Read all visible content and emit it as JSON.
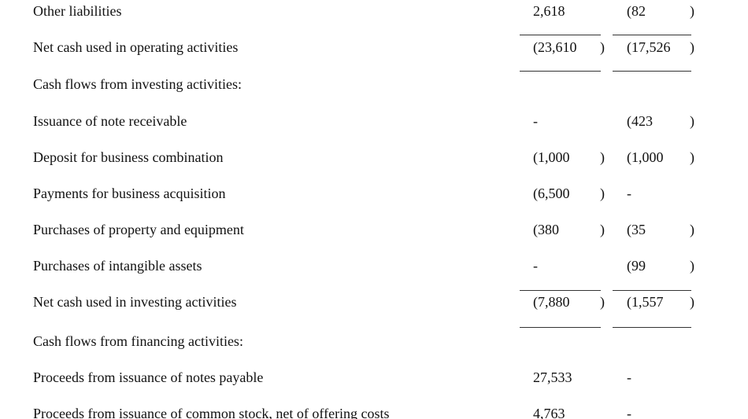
{
  "rows": [
    {
      "label": "Other liabilities",
      "v1": "2,618",
      "c1": "",
      "v2": "(82",
      "c2": ")"
    },
    {
      "label": "Net cash used in operating activities",
      "v1": "(23,610",
      "c1": ")",
      "v2": "(17,526",
      "c2": ")"
    },
    {
      "label": "Cash flows from investing activities:",
      "v1": "",
      "c1": "",
      "v2": "",
      "c2": ""
    },
    {
      "label": "Issuance of note receivable",
      "v1": "-",
      "c1": "",
      "v2": "(423",
      "c2": ")"
    },
    {
      "label": "Deposit for business combination",
      "v1": "(1,000",
      "c1": ")",
      "v2": "(1,000",
      "c2": ")"
    },
    {
      "label": "Payments for business acquisition",
      "v1": "(6,500",
      "c1": ")",
      "v2": "-",
      "c2": ""
    },
    {
      "label": "Purchases of property and equipment",
      "v1": "(380",
      "c1": ")",
      "v2": "(35",
      "c2": ")"
    },
    {
      "label": "Purchases of intangible assets",
      "v1": "-",
      "c1": "",
      "v2": "(99",
      "c2": ")"
    },
    {
      "label": "Net cash used in investing activities",
      "v1": "(7,880",
      "c1": ")",
      "v2": "(1,557",
      "c2": ")"
    },
    {
      "label": "Cash flows from financing activities:",
      "v1": "",
      "c1": "",
      "v2": "",
      "c2": ""
    },
    {
      "label": "Proceeds from issuance of notes payable",
      "v1": "27,533",
      "c1": "",
      "v2": "-",
      "c2": ""
    },
    {
      "label": "Proceeds from issuance of common stock, net of offering costs",
      "v1": "4,763",
      "c1": "",
      "v2": "-",
      "c2": ""
    }
  ]
}
